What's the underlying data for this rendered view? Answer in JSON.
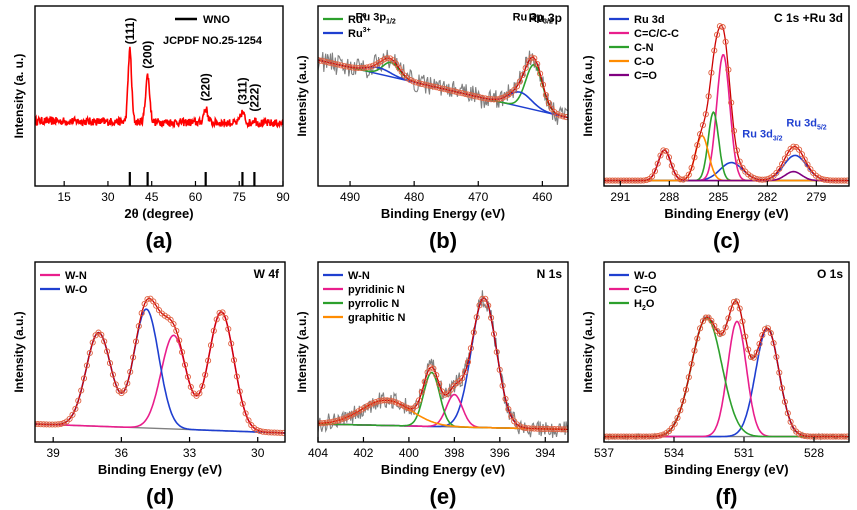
{
  "chart_data": [
    {
      "panel_label": "(a)",
      "type": "line",
      "xlabel": "2θ (degree)",
      "ylabel": "Intensity (a. u.)",
      "xlim": [
        5,
        90
      ],
      "xticks": [
        15,
        30,
        45,
        60,
        75,
        90
      ],
      "y_tick_labels": false,
      "reversed": false,
      "title": "",
      "annotations": [
        "JCPDF NO.25-1254"
      ],
      "legend_position": "top-right",
      "series": [
        {
          "name": "WNO",
          "color": "#ff0000",
          "style": "noisy",
          "baseline": 0.56,
          "slope": 0,
          "noise": 0.035,
          "peaks": [
            {
              "center": 37.5,
              "height": 0.62,
              "width": 0.6
            },
            {
              "center": 43.6,
              "height": 0.4,
              "width": 0.7
            },
            {
              "center": 63.5,
              "height": 0.12,
              "width": 0.7
            },
            {
              "center": 76.1,
              "height": 0.09,
              "width": 0.7
            },
            {
              "center": 80.2,
              "height": 0.03,
              "width": 0.6
            }
          ]
        }
      ],
      "reference_lines": {
        "color": "#000000",
        "positions": [
          37.5,
          43.6,
          63.5,
          76.1,
          80.2
        ]
      },
      "peak_labels": [
        {
          "text": "(111)",
          "x": 37.5,
          "y": 1.22
        },
        {
          "text": "(200)",
          "x": 43.6,
          "y": 1.01
        },
        {
          "text": "(220)",
          "x": 63.5,
          "y": 0.73
        },
        {
          "text": "(311)",
          "x": 76.1,
          "y": 0.7
        },
        {
          "text": "(222)",
          "x": 80.2,
          "y": 0.64
        }
      ],
      "ylim": [
        0,
        1.55
      ]
    },
    {
      "panel_label": "(b)",
      "type": "line",
      "title": "Ru 3p",
      "xlabel": "Binding Energy (eV)",
      "ylabel": "Intensity (a.u.)",
      "xlim": [
        495,
        456
      ],
      "xticks": [
        490,
        480,
        470,
        460
      ],
      "y_tick_labels": false,
      "reversed": true,
      "legend_position": "top-left",
      "ylim": [
        0,
        1
      ],
      "background": {
        "start": 0.7,
        "end": 0.38
      },
      "experimental": {
        "color": "#808080",
        "noise": 0.06
      },
      "series": [
        {
          "name": "Ru⁰",
          "legend_text": "Ru",
          "legend_sup": "0",
          "color": "#2ca02c",
          "peaks": [
            {
              "center": 483.6,
              "height": 0.08,
              "width": 1.3
            },
            {
              "center": 461.3,
              "height": 0.25,
              "width": 1.3
            }
          ]
        },
        {
          "name": "Ru³⁺",
          "legend_text": "Ru",
          "legend_sup": "3+",
          "color": "#1f3fd0",
          "peaks": [
            {
              "center": 485.5,
              "height": 0.035,
              "width": 1.8
            },
            {
              "center": 463.5,
              "height": 0.08,
              "width": 1.8
            }
          ]
        }
      ],
      "envelope": {
        "color": "#cc0000",
        "style": "circles-and-line"
      },
      "background_color": "#1f3fd0",
      "peak_labels": [
        {
          "text": "Ru 3p",
          "sub": "1/2",
          "x": 486.0,
          "y": 0.92
        },
        {
          "text": "Ru 3p",
          "sub": "3/2",
          "x": 461.5,
          "y": 0.92
        }
      ]
    },
    {
      "panel_label": "(c)",
      "type": "line",
      "title": "C 1s +Ru 3d",
      "xlabel": "Binding Energy (eV)",
      "ylabel": "Intensity (a.u.)",
      "xlim": [
        292,
        277
      ],
      "xticks": [
        291,
        288,
        285,
        282,
        279
      ],
      "y_tick_labels": false,
      "reversed": true,
      "legend_position": "top-left",
      "ylim": [
        0,
        1
      ],
      "background": {
        "start": 0.03,
        "end": 0.03
      },
      "series": [
        {
          "name": "Ru 3d",
          "color": "#1f3fd0",
          "peaks": [
            {
              "center": 284.2,
              "height": 0.1,
              "width": 0.7
            },
            {
              "center": 280.3,
              "height": 0.14,
              "width": 0.7
            }
          ]
        },
        {
          "name": "C=C/C-C",
          "color": "#e91e8c",
          "peaks": [
            {
              "center": 284.7,
              "height": 0.7,
              "width": 0.4
            }
          ]
        },
        {
          "name": "C-N",
          "color": "#2ca02c",
          "peaks": [
            {
              "center": 285.3,
              "height": 0.38,
              "width": 0.32
            }
          ]
        },
        {
          "name": "C-O",
          "color": "#ff8c00",
          "peaks": [
            {
              "center": 286.0,
              "height": 0.25,
              "width": 0.4
            }
          ]
        },
        {
          "name": "C=O",
          "color": "#800080",
          "peaks": [
            {
              "center": 288.3,
              "height": 0.17,
              "width": 0.38
            },
            {
              "center": 280.4,
              "height": 0.05,
              "width": 0.5
            }
          ]
        }
      ],
      "envelope": {
        "color": "#cc0000",
        "style": "circles-and-line"
      },
      "peak_labels": [
        {
          "text": "Ru 3d",
          "sub": "3/2",
          "x": 282.3,
          "y": 0.27,
          "color": "#1f3fd0"
        },
        {
          "text": "Ru 3d",
          "sub": "5/2",
          "x": 279.6,
          "y": 0.33,
          "color": "#1f3fd0"
        }
      ]
    },
    {
      "panel_label": "(d)",
      "type": "line",
      "title": "W 4f",
      "xlabel": "Binding Energy (eV)",
      "ylabel": "Intensity (a.u.)",
      "xlim": [
        39.8,
        28.8
      ],
      "xticks": [
        39,
        36,
        33,
        30
      ],
      "y_tick_labels": false,
      "reversed": true,
      "legend_position": "top-left",
      "ylim": [
        0,
        1
      ],
      "background": {
        "start": 0.1,
        "end": 0.05
      },
      "series": [
        {
          "name": "W-N",
          "color": "#e91e8c",
          "peaks": [
            {
              "center": 33.7,
              "height": 0.52,
              "width": 0.55
            },
            {
              "center": 31.6,
              "height": 0.66,
              "width": 0.55
            }
          ]
        },
        {
          "name": "W-O",
          "color": "#1f3fd0",
          "peaks": [
            {
              "center": 37.0,
              "height": 0.52,
              "width": 0.55
            },
            {
              "center": 34.9,
              "height": 0.66,
              "width": 0.55
            }
          ]
        }
      ],
      "envelope": {
        "color": "#cc0000",
        "style": "circles-and-line"
      }
    },
    {
      "panel_label": "(e)",
      "type": "line",
      "title": "N 1s",
      "xlabel": "Binding Energy (eV)",
      "ylabel": "Intensity (a.u.)",
      "xlim": [
        404,
        393
      ],
      "xticks": [
        404,
        402,
        400,
        398,
        396,
        394
      ],
      "y_tick_labels": false,
      "reversed": true,
      "legend_position": "top-left",
      "ylim": [
        0,
        1
      ],
      "background": {
        "start": 0.1,
        "end": 0.07
      },
      "experimental": {
        "color": "#808080",
        "noise": 0.05
      },
      "series": [
        {
          "name": "W-N",
          "color": "#1f3fd0",
          "peaks": [
            {
              "center": 396.7,
              "height": 0.72,
              "width": 0.55
            }
          ]
        },
        {
          "name": "pyridinic N",
          "color": "#e91e8c",
          "peaks": [
            {
              "center": 398.0,
              "height": 0.18,
              "width": 0.35
            }
          ]
        },
        {
          "name": "pyrrolic N",
          "color": "#2ca02c",
          "peaks": [
            {
              "center": 399.0,
              "height": 0.3,
              "width": 0.35
            }
          ]
        },
        {
          "name": "graphitic N",
          "color": "#ff8c00",
          "peaks": [
            {
              "center": 401.0,
              "height": 0.14,
              "width": 1.1
            }
          ]
        }
      ],
      "envelope": {
        "color": "#cc0000",
        "style": "circles-and-line"
      }
    },
    {
      "panel_label": "(f)",
      "type": "line",
      "title": "O 1s",
      "xlabel": "Binding Energy (eV)",
      "ylabel": "Intensity (a.u.)",
      "xlim": [
        537,
        526.5
      ],
      "xticks": [
        537,
        534,
        531,
        528
      ],
      "y_tick_labels": false,
      "reversed": true,
      "legend_position": "top-left",
      "ylim": [
        0,
        1
      ],
      "background": {
        "start": 0.03,
        "end": 0.03
      },
      "experimental": {
        "color": "#808080",
        "noise": 0.015
      },
      "series": [
        {
          "name": "W-O",
          "color": "#1f3fd0",
          "peaks": [
            {
              "center": 530.0,
              "height": 0.6,
              "width": 0.5
            }
          ]
        },
        {
          "name": "C=O",
          "color": "#e91e8c",
          "peaks": [
            {
              "center": 531.3,
              "height": 0.64,
              "width": 0.4
            }
          ]
        },
        {
          "name": "H₂O",
          "legend_text": "H",
          "legend_sub": "2",
          "legend_tail": "O",
          "color": "#2ca02c",
          "peaks": [
            {
              "center": 532.6,
              "height": 0.66,
              "width": 0.65
            }
          ]
        }
      ],
      "envelope": {
        "color": "#cc0000",
        "style": "circles-and-line"
      }
    }
  ]
}
